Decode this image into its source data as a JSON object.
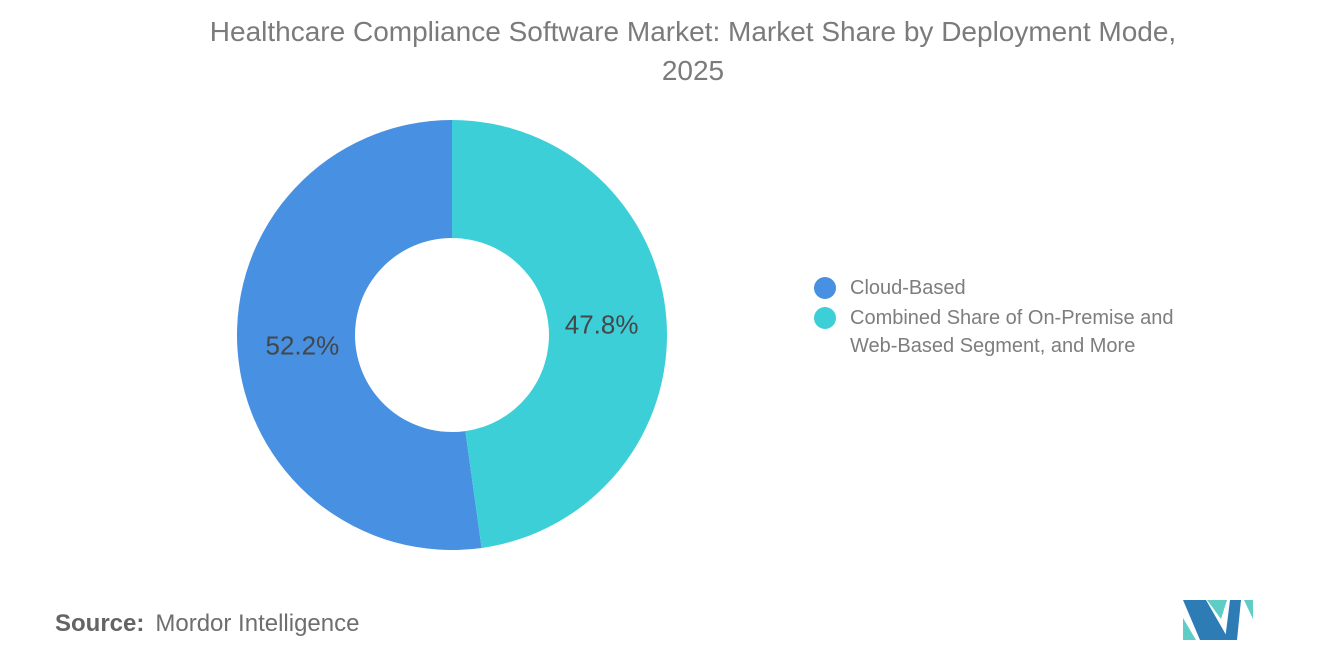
{
  "header": {
    "title_line1": "Healthcare Compliance Software Market: Market Share by Deployment Mode,",
    "title_line2": "2025"
  },
  "chart_data": {
    "type": "pie",
    "subtype": "donut",
    "title": "Healthcare Compliance Software Market: Market Share by Deployment Mode, 2025",
    "start_angle_deg": 0,
    "direction": "counterclockwise",
    "inner_radius_ratio": 0.45,
    "legend_position": "right",
    "series": [
      {
        "name": "Cloud-Based",
        "value": 52.2,
        "label": "52.2%",
        "color": "#4890E1"
      },
      {
        "name": "Combined Share of On-Premise and Web-Based Segment, and More",
        "value": 47.8,
        "label": "47.8%",
        "color": "#3DCFD8"
      }
    ]
  },
  "legend": {
    "items": [
      {
        "label": "Cloud-Based",
        "color": "#4890E1"
      },
      {
        "label": "Combined Share of On-Premise and Web-Based Segment, and More",
        "color": "#3DCFD8"
      }
    ]
  },
  "footer": {
    "source_label": "Source:",
    "source_value": "Mordor Intelligence",
    "logo": {
      "name": "mordor-intelligence-logo",
      "blue": "#2E7CB6",
      "teal": "#5FCCC5"
    }
  }
}
